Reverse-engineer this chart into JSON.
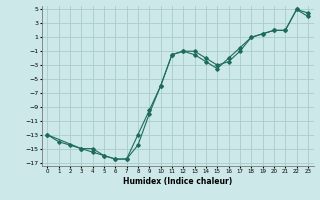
{
  "xlabel": "Humidex (Indice chaleur)",
  "ylabel": "",
  "background_color": "#cce8e8",
  "grid_color": "#aacccc",
  "line_color": "#1e6b5e",
  "xlim": [
    -0.5,
    23.5
  ],
  "ylim": [
    -17.5,
    5.5
  ],
  "xticks": [
    0,
    1,
    2,
    3,
    4,
    5,
    6,
    7,
    8,
    9,
    10,
    11,
    12,
    13,
    14,
    15,
    16,
    17,
    18,
    19,
    20,
    21,
    22,
    23
  ],
  "yticks": [
    5,
    3,
    1,
    -1,
    -3,
    -5,
    -7,
    -9,
    -11,
    -13,
    -15,
    -17
  ],
  "series1_x": [
    0,
    1,
    2,
    3,
    4,
    5,
    6,
    7,
    8,
    9,
    10,
    11,
    12,
    13,
    14,
    15,
    16,
    17,
    18,
    19,
    20,
    21,
    22,
    23
  ],
  "series1_y": [
    -13,
    -14,
    -14.5,
    -15,
    -15,
    -16,
    -16.5,
    -16.5,
    -13,
    -9.5,
    -6,
    -1.5,
    -1,
    -1,
    -2,
    -3,
    -2.5,
    -1,
    1,
    1.5,
    2,
    2,
    5,
    4.5
  ],
  "series2_x": [
    0,
    3,
    4,
    5,
    6,
    7,
    8,
    9,
    10,
    11,
    12,
    13,
    14,
    15,
    16,
    17,
    18,
    19,
    20,
    21,
    22,
    23
  ],
  "series2_y": [
    -13,
    -15,
    -15.5,
    -16,
    -16.5,
    -16.5,
    -14.5,
    -10,
    -6,
    -1.5,
    -1,
    -1.5,
    -2.5,
    -3.5,
    -2,
    -0.5,
    1,
    1.5,
    2,
    2,
    5,
    4
  ]
}
